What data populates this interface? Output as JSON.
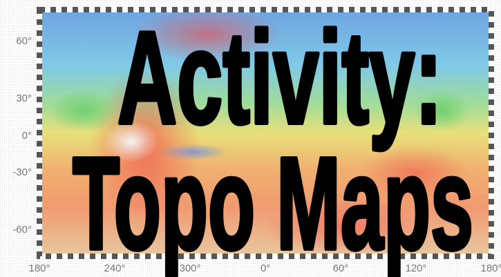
{
  "title": {
    "line1": "Activity:",
    "line2": "Topo Maps"
  },
  "latitude_labels": [
    "60°",
    "30°",
    "0°",
    "-30°",
    "-60°"
  ],
  "longitude_labels": [
    "180°",
    "240°",
    "300°",
    "0°",
    "60°",
    "120°",
    "180°"
  ]
}
